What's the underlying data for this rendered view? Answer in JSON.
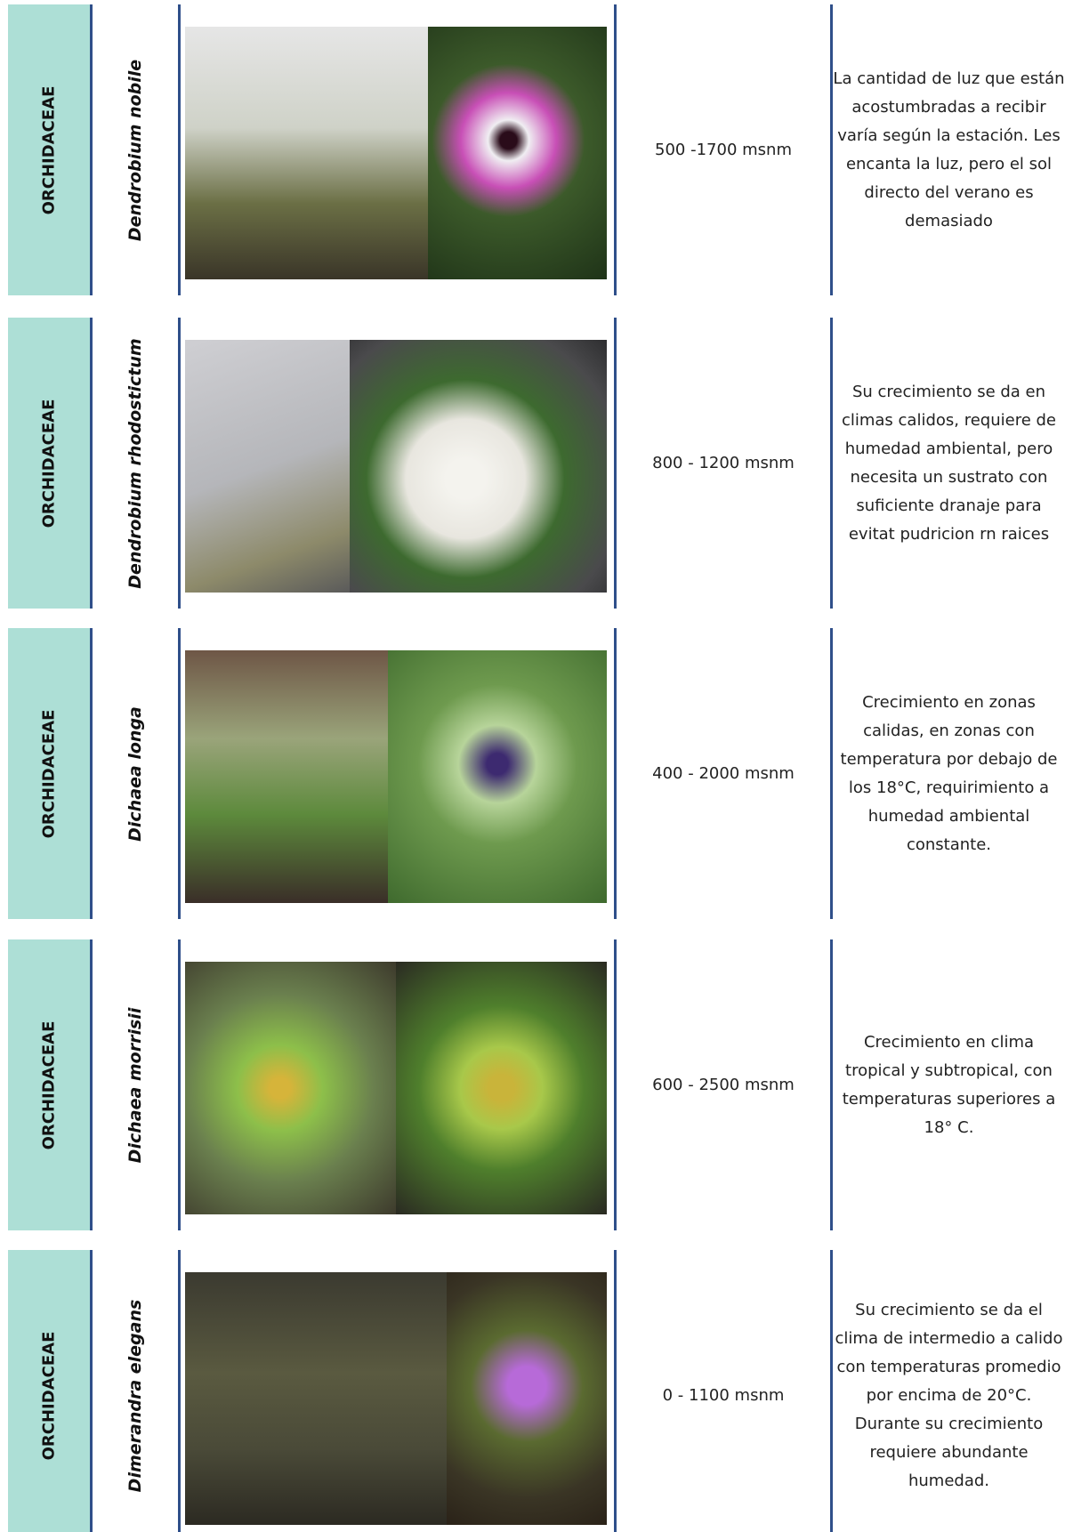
{
  "table": {
    "rows": [
      {
        "family": "ORCHIDACEAE",
        "species": "Dendrobium nobile",
        "altitude": "500 -1700 msnm",
        "description": "La cantidad de luz que están acostumbradas a recibir varía según la estación. Les encanta la luz, pero el sol directo del verano es demasiado"
      },
      {
        "family": "ORCHIDACEAE",
        "species": "Dendrobium rhodostictum",
        "altitude": "800 - 1200 msnm",
        "description": "Su crecimiento se da en climas calidos, requiere de humedad ambiental, pero necesita un sustrato con suficiente dranaje para evitat pudricion rn raices"
      },
      {
        "family": "ORCHIDACEAE",
        "species": "Dichaea longa",
        "altitude": "400 - 2000 msnm",
        "description": "Crecimiento en zonas calidas, en zonas con temperatura por debajo de los 18°C, requirimiento a humedad ambiental constante."
      },
      {
        "family": "ORCHIDACEAE",
        "species": "Dichaea morrisii",
        "altitude": "600 - 2500 msnm",
        "description": "Crecimiento en clima tropical y subtropical, con temperaturas superiores a 18° C."
      },
      {
        "family": "ORCHIDACEAE",
        "species": "Dimerandra elegans",
        "altitude": "0 - 1100 msnm",
        "description": "Su  crecimiento se da el clima de intermedio a calido con temperaturas promedio por encima  de 20°C. Durante su crecimiento requiere abundante humedad."
      }
    ]
  }
}
